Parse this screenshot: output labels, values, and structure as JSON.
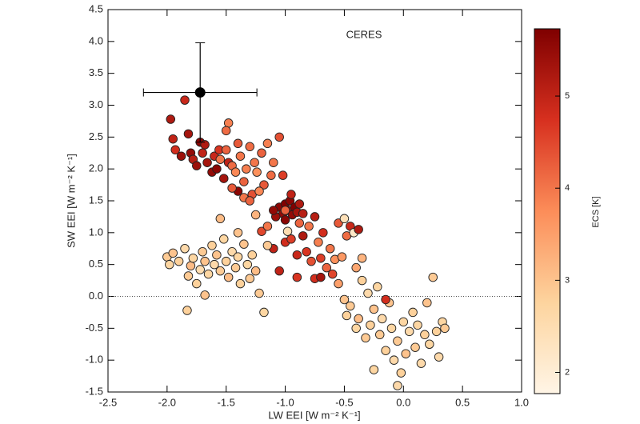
{
  "chart_data": {
    "type": "scatter",
    "annotation": "CERES",
    "x_label": "LW EEI [W m⁻² K⁻¹]",
    "y_label": "SW EEI [W m⁻² K⁻¹]",
    "colorbar_label": "ECS [K]",
    "xlim": [
      -2.5,
      1.0
    ],
    "ylim": [
      -1.5,
      4.5
    ],
    "clim": [
      1.77,
      5.73
    ],
    "xticks": [
      -2.5,
      {
        "value": -2.0,
        "label": "-2.0"
      },
      -1.5,
      {
        "value": -1.0,
        "label": "-1.0"
      },
      -0.5,
      {
        "value": 0.0,
        "label": "0.0"
      },
      0.5,
      {
        "value": 1.0,
        "label": "1.0"
      }
    ],
    "yticks": [
      -1.5,
      {
        "value": -1.0,
        "label": "-1.0"
      },
      -0.5,
      {
        "value": 0.0,
        "label": "0.0"
      },
      0.5,
      {
        "value": 1.0,
        "label": "1.0"
      },
      1.5,
      {
        "value": 2.0,
        "label": "2.0"
      },
      2.5,
      {
        "value": 3.0,
        "label": "3.0"
      },
      3.5,
      {
        "value": 4.0,
        "label": "4.0"
      },
      4.5
    ],
    "cticks": [
      2,
      3,
      4,
      5
    ],
    "reference_line": 0,
    "colormap": [
      "#fff5e6",
      "#fdd49e",
      "#fc8d59",
      "#d7301f",
      "#7f0000"
    ],
    "x": [
      -1.97,
      -1.95,
      -1.93,
      -1.85,
      -1.82,
      -1.8,
      -1.78,
      -1.75,
      -1.72,
      -1.7,
      -1.68,
      -1.66,
      -1.62,
      -1.6,
      -1.56,
      -1.88,
      -1.58,
      -1.52,
      -1.48,
      -1.4,
      -1.55,
      -1.5,
      -1.48,
      -1.45,
      -1.42,
      -1.4,
      -1.38,
      -1.35,
      -1.33,
      -1.3,
      -1.28,
      -1.26,
      -1.24,
      -1.2,
      -1.18,
      -1.15,
      -1.12,
      -1.35,
      -1.3,
      -1.22,
      -1.45,
      -1.1,
      -1.05,
      -1.02,
      -1.5,
      -1.25,
      -1.2,
      -1.15,
      -1.1,
      -1.0,
      -0.98,
      -0.95,
      -0.9,
      -0.88,
      -0.85,
      -0.82,
      -0.8,
      -0.78,
      -0.75,
      -0.72,
      -0.7,
      -0.68,
      -0.65,
      -0.62,
      -0.6,
      -0.58,
      -0.55,
      -0.52,
      -0.5,
      -0.48,
      -0.45,
      -0.42,
      -0.38,
      -0.4,
      -0.35,
      -1.05,
      -0.9,
      -0.75,
      -0.7,
      -0.55,
      -2.0,
      -1.98,
      -1.95,
      -1.9,
      -1.85,
      -1.82,
      -1.8,
      -1.78,
      -1.75,
      -1.72,
      -1.7,
      -1.68,
      -1.65,
      -1.62,
      -1.6,
      -1.58,
      -1.55,
      -1.52,
      -1.5,
      -1.48,
      -1.45,
      -1.42,
      -1.4,
      -1.38,
      -1.35,
      -1.32,
      -1.3,
      -1.28,
      -1.25,
      -1.22,
      -1.83,
      -1.68,
      -1.18,
      -1.4,
      -1.15,
      -1.55,
      -0.5,
      -0.48,
      -0.45,
      -0.4,
      -0.38,
      -0.35,
      -0.32,
      -0.3,
      -0.28,
      -0.25,
      -0.22,
      -0.2,
      -0.18,
      -0.15,
      -0.12,
      -0.1,
      -0.08,
      -0.05,
      -0.02,
      0.0,
      0.02,
      0.05,
      0.08,
      0.1,
      0.12,
      0.15,
      0.18,
      0.2,
      0.22,
      0.25,
      0.28,
      0.3,
      0.33,
      0.35,
      -0.05,
      -0.15,
      -0.25,
      -1.05,
      -1.02,
      -1.0,
      -0.98,
      -0.96,
      -0.94,
      -0.92,
      -0.9,
      -1.08,
      -0.88,
      -1.0,
      -0.95,
      -1.1,
      -0.85,
      -1.0
    ],
    "values": [
      2.78,
      2.47,
      2.3,
      3.08,
      2.55,
      2.25,
      2.15,
      2.05,
      2.42,
      2.25,
      2.38,
      2.1,
      1.95,
      2.2,
      2.3,
      2.2,
      2.0,
      1.85,
      2.1,
      1.65,
      2.15,
      2.3,
      2.72,
      2.05,
      1.95,
      2.4,
      2.2,
      1.8,
      2.0,
      2.35,
      1.6,
      2.1,
      1.95,
      2.25,
      1.75,
      2.4,
      1.9,
      1.55,
      1.5,
      1.65,
      1.7,
      2.1,
      2.5,
      1.9,
      2.6,
      1.28,
      1.02,
      1.1,
      0.75,
      0.85,
      1.02,
      0.9,
      0.65,
      1.15,
      0.95,
      0.7,
      1.1,
      0.55,
      1.25,
      0.85,
      0.6,
      1.0,
      0.45,
      0.75,
      0.35,
      0.58,
      1.15,
      0.62,
      1.22,
      0.95,
      1.1,
      1.0,
      1.05,
      0.45,
      0.6,
      0.4,
      0.3,
      0.28,
      0.3,
      0.2,
      0.62,
      0.5,
      0.68,
      0.55,
      0.75,
      0.32,
      0.48,
      0.6,
      0.2,
      0.42,
      0.7,
      0.55,
      0.35,
      0.8,
      0.5,
      0.65,
      0.4,
      0.9,
      0.55,
      0.3,
      0.7,
      0.45,
      0.62,
      0.2,
      0.82,
      0.5,
      0.28,
      0.65,
      0.4,
      0.05,
      -0.22,
      0.02,
      -0.25,
      1.0,
      0.8,
      1.22,
      -0.05,
      -0.3,
      -0.15,
      -0.5,
      -0.35,
      0.25,
      -0.65,
      0.05,
      -0.45,
      -0.2,
      0.15,
      -0.6,
      -0.35,
      -0.85,
      -0.1,
      -0.5,
      -1.0,
      -0.7,
      -1.2,
      -0.4,
      -0.9,
      -0.55,
      -0.25,
      -0.8,
      -0.45,
      -1.05,
      -0.6,
      -0.1,
      -0.75,
      0.3,
      -0.55,
      -0.95,
      -0.4,
      -0.5,
      -1.4,
      -0.05,
      -1.15,
      1.4,
      1.3,
      1.45,
      1.35,
      1.5,
      1.28,
      1.4,
      1.32,
      1.25,
      1.45,
      1.2,
      1.6,
      1.35,
      1.3,
      1.35
    ],
    "ecs": [
      5.2,
      5.0,
      4.8,
      4.9,
      5.3,
      5.5,
      5.1,
      5.4,
      5.6,
      5.0,
      5.2,
      5.3,
      5.5,
      4.9,
      4.7,
      5.4,
      5.6,
      5.3,
      5.0,
      5.6,
      4.0,
      4.2,
      3.9,
      4.1,
      3.8,
      4.3,
      4.0,
      4.2,
      3.9,
      4.1,
      4.4,
      4.0,
      3.7,
      4.2,
      4.3,
      3.9,
      4.1,
      4.0,
      4.2,
      3.8,
      4.3,
      4.0,
      4.4,
      4.6,
      4.1,
      3.2,
      4.5,
      4.0,
      5.0,
      4.8,
      2.5,
      4.6,
      4.9,
      4.2,
      5.2,
      4.7,
      4.0,
      4.4,
      5.1,
      3.9,
      4.6,
      4.8,
      4.2,
      4.0,
      4.5,
      3.7,
      4.3,
      3.6,
      2.4,
      4.1,
      4.9,
      2.2,
      5.2,
      3.4,
      3.2,
      5.0,
      4.7,
      4.8,
      5.3,
      3.5,
      2.9,
      2.7,
      3.0,
      2.8,
      2.6,
      2.9,
      3.1,
      2.7,
      2.8,
      2.5,
      2.9,
      3.0,
      2.7,
      2.8,
      2.6,
      3.0,
      2.9,
      2.7,
      2.8,
      3.1,
      2.6,
      2.9,
      2.7,
      2.8,
      3.0,
      2.7,
      2.9,
      2.8,
      3.1,
      2.9,
      2.8,
      3.0,
      2.7,
      3.0,
      2.9,
      3.1,
      3.0,
      2.8,
      2.9,
      2.7,
      3.1,
      2.8,
      2.9,
      2.6,
      2.8,
      3.0,
      2.7,
      2.9,
      2.6,
      2.8,
      3.0,
      2.7,
      2.6,
      2.9,
      2.8,
      2.7,
      3.0,
      2.6,
      2.8,
      2.9,
      2.7,
      2.6,
      2.8,
      3.0,
      2.7,
      2.9,
      2.8,
      2.6,
      2.7,
      2.9,
      2.6,
      4.8,
      2.7,
      5.6,
      5.5,
      5.7,
      5.4,
      5.6,
      5.5,
      5.7,
      5.3,
      5.4,
      5.2,
      5.6,
      5.0,
      5.5,
      5.1,
      4.2
    ],
    "observation": {
      "x": -1.72,
      "y": 3.2,
      "xerr": 0.48,
      "yerr": 0.78,
      "color": "#000000"
    }
  }
}
